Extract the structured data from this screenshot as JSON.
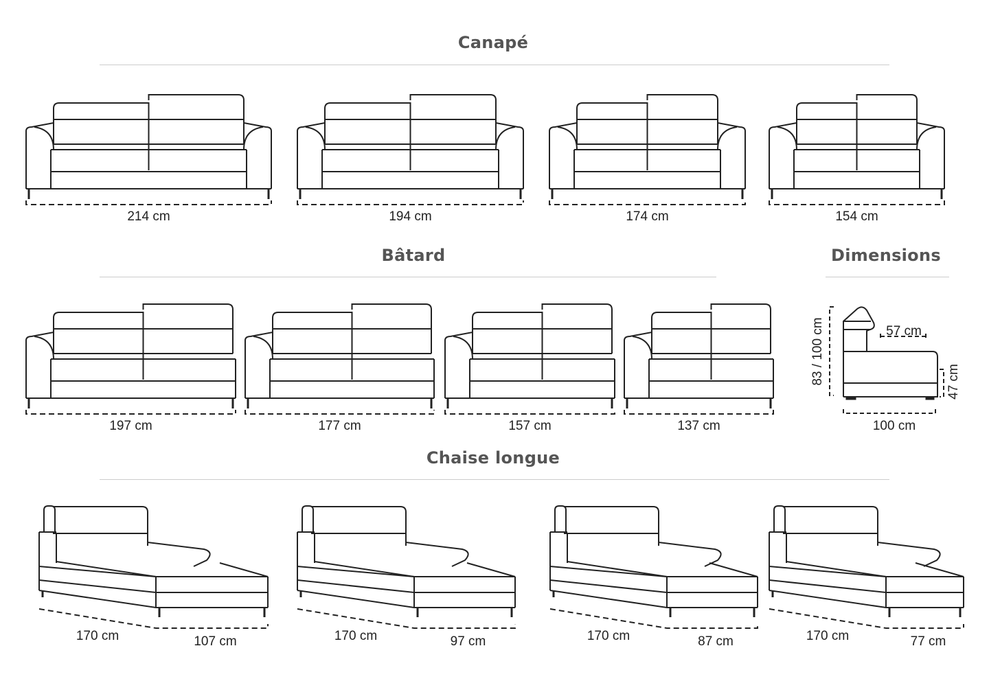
{
  "sections": {
    "canape": {
      "title": "Canapé",
      "sizes": [
        "214 cm",
        "194 cm",
        "174 cm",
        "154 cm"
      ]
    },
    "batard": {
      "title": "Bâtard",
      "sizes": [
        "197 cm",
        "177 cm",
        "157 cm",
        "137 cm"
      ]
    },
    "dimensions": {
      "title": "Dimensions",
      "height": "83 / 100 cm",
      "seat_depth": "57 cm",
      "seat_height": "47 cm",
      "depth": "100 cm"
    },
    "chaise_longue": {
      "title": "Chaise longue",
      "items": [
        {
          "length": "170 cm",
          "width": "107 cm"
        },
        {
          "length": "170 cm",
          "width": "97 cm"
        },
        {
          "length": "170 cm",
          "width": "87 cm"
        },
        {
          "length": "170 cm",
          "width": "77 cm"
        }
      ]
    }
  },
  "colors": {
    "line": "#222222",
    "title": "#555555",
    "rule": "#cccccc"
  }
}
